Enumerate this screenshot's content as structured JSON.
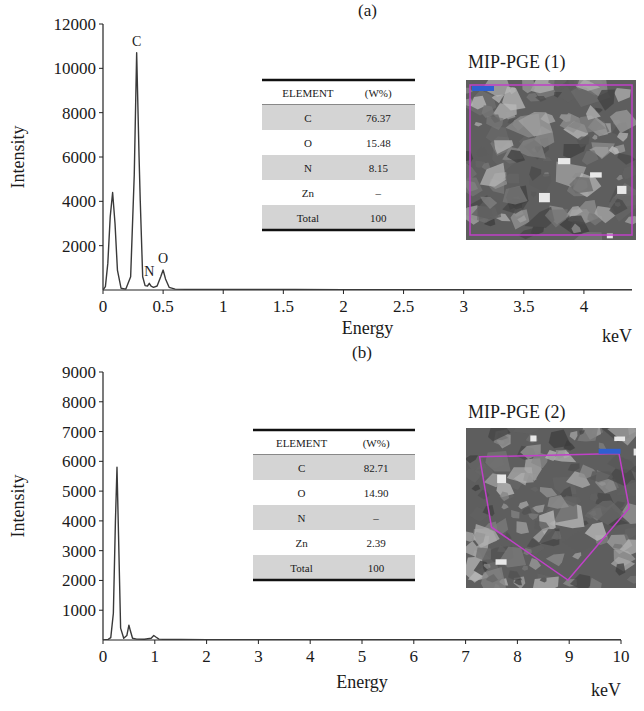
{
  "chart_data": [
    {
      "type": "line",
      "title": "(a)",
      "x_label": "Energy",
      "x_unit": "keV",
      "y_label": "Intensity",
      "color": "#3a3a3a",
      "grid": false,
      "x": [
        0,
        0.02,
        0.04,
        0.06,
        0.08,
        0.1,
        0.12,
        0.15,
        0.19,
        0.23,
        0.26,
        0.28,
        0.3,
        0.31,
        0.33,
        0.35,
        0.37,
        0.385,
        0.4,
        0.42,
        0.45,
        0.48,
        0.5,
        0.52,
        0.55,
        0.6,
        0.7,
        0.9,
        1.2,
        1.6,
        2.0,
        2.5,
        3.0,
        3.5,
        4.0,
        4.4
      ],
      "values": [
        0,
        150,
        1200,
        3300,
        4400,
        3000,
        900,
        80,
        40,
        600,
        5200,
        10700,
        6000,
        4000,
        600,
        200,
        180,
        300,
        170,
        120,
        180,
        600,
        900,
        500,
        120,
        40,
        30,
        25,
        20,
        20,
        15,
        15,
        12,
        12,
        10,
        10
      ],
      "xlim": [
        0,
        4.4
      ],
      "xticks": [
        0,
        0.5,
        1,
        1.5,
        2,
        2.5,
        3,
        3.5,
        4
      ],
      "ylim": [
        0,
        12000
      ],
      "yticks": [
        2000,
        4000,
        6000,
        8000,
        10000,
        12000
      ],
      "annotations": [
        {
          "text": "C",
          "x": 0.28,
          "y": 10700
        },
        {
          "text": "N",
          "x": 0.385,
          "y": 300
        },
        {
          "text": "O",
          "x": 0.5,
          "y": 900
        }
      ],
      "table": {
        "columns": [
          "ELEMENT",
          "(W%)"
        ],
        "rows": [
          [
            "C",
            "76.37"
          ],
          [
            "O",
            "15.48"
          ],
          [
            "N",
            "8.15"
          ],
          [
            "Zn",
            "–"
          ],
          [
            "Total",
            "100"
          ]
        ]
      },
      "image_label": "MIP-PGE (1)"
    },
    {
      "type": "line",
      "title": "(b)",
      "x_label": "Energy",
      "x_unit": "keV",
      "y_label": "Intensity",
      "color": "#3a3a3a",
      "grid": false,
      "x": [
        0,
        0.1,
        0.15,
        0.2,
        0.24,
        0.27,
        0.3,
        0.34,
        0.4,
        0.46,
        0.5,
        0.53,
        0.57,
        0.65,
        0.8,
        0.93,
        0.98,
        1.02,
        1.08,
        1.2,
        1.5,
        2,
        3,
        4,
        5,
        6,
        7,
        8,
        9,
        10
      ],
      "values": [
        0,
        20,
        80,
        900,
        4000,
        5800,
        3500,
        400,
        60,
        150,
        500,
        300,
        60,
        30,
        25,
        60,
        150,
        100,
        30,
        20,
        15,
        12,
        10,
        10,
        8,
        8,
        8,
        8,
        8,
        8
      ],
      "xlim": [
        0,
        10
      ],
      "xticks": [
        0,
        1,
        2,
        3,
        4,
        5,
        6,
        7,
        8,
        9,
        10
      ],
      "ylim": [
        0,
        9000
      ],
      "yticks": [
        1000,
        2000,
        3000,
        4000,
        5000,
        6000,
        7000,
        8000,
        9000
      ],
      "annotations": [],
      "table": {
        "columns": [
          "ELEMENT",
          "(W%)"
        ],
        "rows": [
          [
            "C",
            "82.71"
          ],
          [
            "O",
            "14.90"
          ],
          [
            "N",
            "–"
          ],
          [
            "Zn",
            "2.39"
          ],
          [
            "Total",
            "100"
          ]
        ]
      },
      "image_label": "MIP-PGE (2)"
    }
  ]
}
